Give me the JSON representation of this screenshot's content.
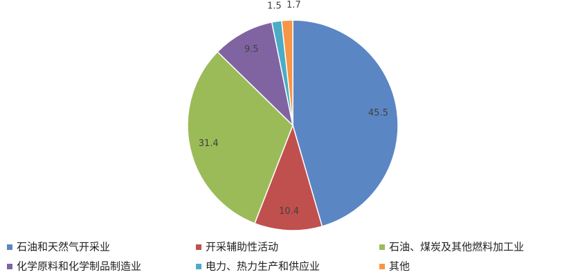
{
  "chart_data": {
    "type": "pie",
    "categories": [
      "石油和天然气开采业",
      "开采辅助性活动",
      "石油、煤炭及其他燃料加工业",
      "化学原料和化学制品制造业",
      "电力、热力生产和供应业",
      "其他"
    ],
    "values": [
      45.5,
      10.4,
      31.4,
      9.5,
      1.5,
      1.7
    ],
    "colors": [
      "#5b86c4",
      "#c0504d",
      "#9bbb59",
      "#8064a2",
      "#4bacc6",
      "#f79646"
    ]
  }
}
